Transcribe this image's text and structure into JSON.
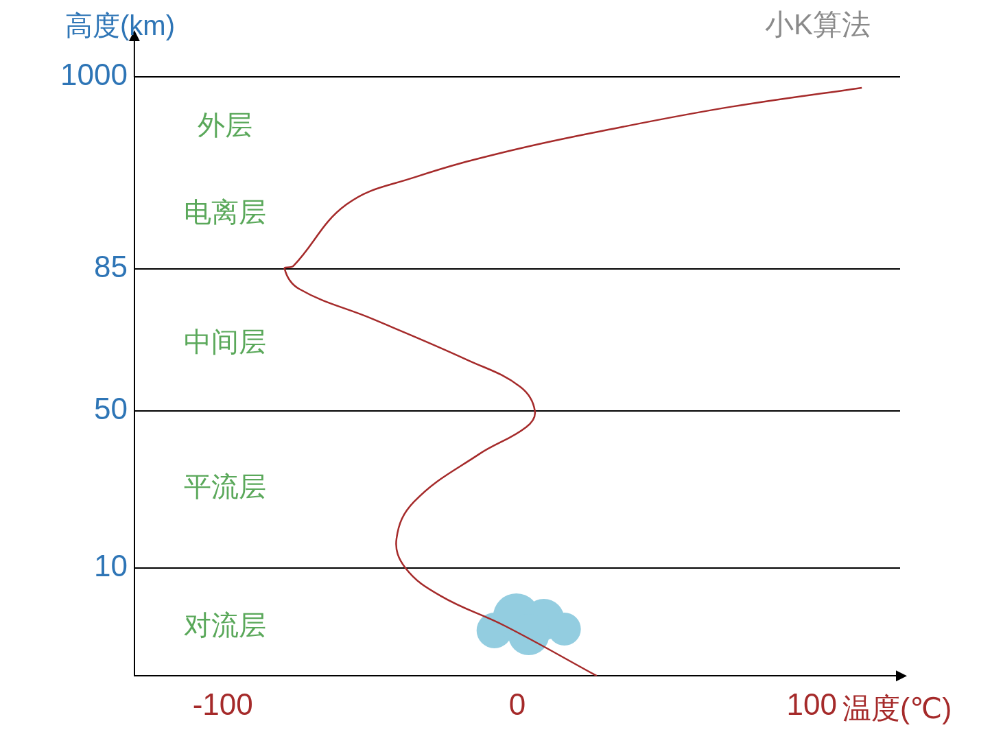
{
  "chart_data": {
    "type": "line",
    "x_label": "温度(℃)",
    "y_label": "高度(km)",
    "watermark": "小K算法",
    "annotations": [
      "外层",
      "电离层",
      "中间层",
      "平流层",
      "对流层"
    ],
    "x": [
      27,
      -4,
      -26,
      -38,
      -41,
      -35,
      -13,
      3,
      6,
      1,
      -17,
      -49,
      -74,
      -79,
      -76,
      -58,
      -35,
      -2,
      36,
      73,
      117
    ],
    "values": [
      0,
      4.6,
      7.4,
      10,
      17.4,
      26.9,
      39,
      45.9,
      50,
      56,
      62.6,
      72.6,
      80,
      85,
      97.9,
      391,
      520,
      649,
      762,
      858,
      948
    ],
    "color": "#a52a2a",
    "marker": "none",
    "xlim": [
      -130,
      130
    ],
    "xticks": [
      -100,
      0,
      100
    ],
    "ylim": [
      0,
      1000
    ],
    "yticks": [
      10,
      50,
      85,
      1000
    ],
    "grid": true,
    "legend": false
  }
}
